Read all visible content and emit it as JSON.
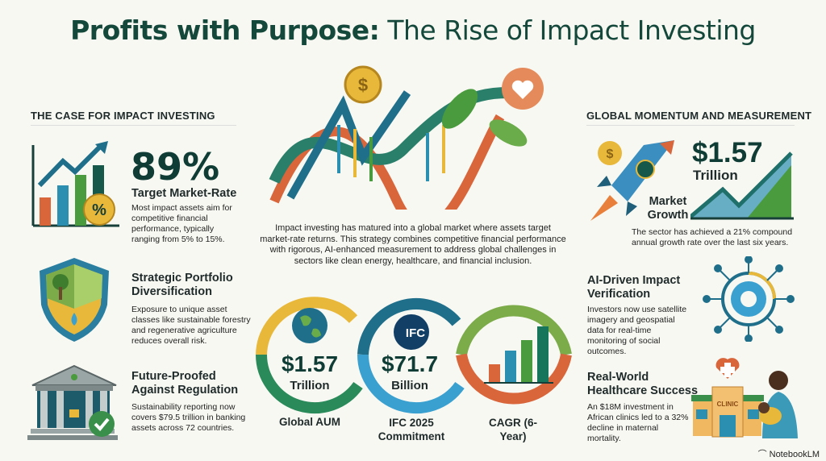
{
  "title": {
    "bold": "Profits with Purpose:",
    "rest": " The Rise of Impact Investing"
  },
  "left": {
    "heading": "THE CASE FOR IMPACT INVESTING",
    "items": [
      {
        "stat": "89%",
        "title": "Target Market-Rate",
        "text": "Most impact assets aim for competitive financial performance, typically ranging from 5% to 15%.",
        "icon": "bar-chart-percent-icon"
      },
      {
        "title": "Strategic Portfolio Diversification",
        "text": "Exposure to unique asset classes like sustainable forestry and regenerative agriculture reduces overall risk.",
        "icon": "shield-nature-icon"
      },
      {
        "title": "Future-Proofed Against Regulation",
        "text": "Sustainability reporting now covers $79.5 trillion in banking assets across 72 countries.",
        "icon": "bank-check-icon"
      }
    ]
  },
  "center": {
    "paragraph": "Impact investing has matured into a global market where assets target market-rate returns. This strategy combines competitive financial performance with rigorous, AI-enhanced measurement to address global challenges in sectors like clean energy, healthcare, and financial inclusion.",
    "rings": [
      {
        "value": "$1.57",
        "unit": "Trillion",
        "label": "Global AUM",
        "icon": "globe-icon"
      },
      {
        "value": "$71.7",
        "unit": "Billion",
        "label": "IFC 2025 Commitment",
        "icon": "ifc-logo",
        "logo_text": "IFC"
      },
      {
        "label": "CAGR (6-Year)",
        "icon": "bar-chart-icon"
      }
    ]
  },
  "right": {
    "heading": "GLOBAL MOMENTUM AND MEASUREMENT",
    "growth": {
      "value": "$1.57",
      "unit": "Trillion",
      "label": "Market Growth",
      "text": "The sector has achieved a 21% compound annual growth rate over the last six years."
    },
    "items": [
      {
        "title": "AI-Driven Impact Verification",
        "text": "Investors now use satellite imagery and geospatial data for real-time monitoring of social outcomes.",
        "icon": "network-globe-icon"
      },
      {
        "title": "Real-World Healthcare Success",
        "text": "An $18M investment in African clinics led to a 32% decline in maternal mortality.",
        "icon": "clinic-mother-icon",
        "clinic_sign": "CLINIC"
      }
    ]
  },
  "footer": {
    "brand": "NotebookLM"
  },
  "colors": {
    "dark_green": "#0f3d35",
    "teal": "#1f6f8b",
    "green": "#3a8f4a",
    "yellow": "#e8b83a",
    "orange": "#d9653b"
  }
}
